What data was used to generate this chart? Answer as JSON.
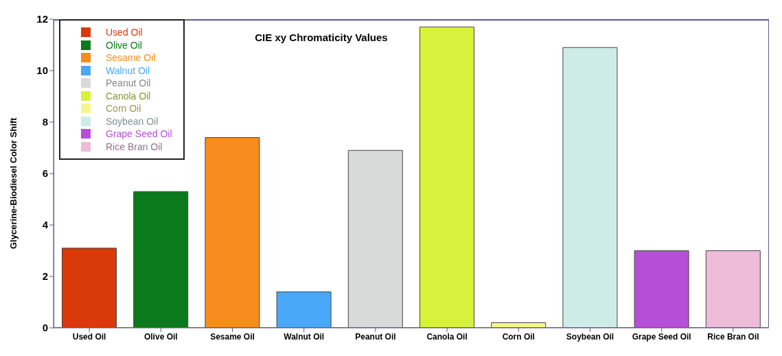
{
  "chart_data": {
    "type": "bar",
    "title": "CIE xy Chromaticity Values",
    "ylabel": "Glycerine-Biodiesel Color Shift",
    "categories": [
      "Used Oil",
      "Olive Oil",
      "Sesame Oil",
      "Walnut Oil",
      "Peanut Oil",
      "Canola Oil",
      "Corn Oil",
      "Soybean Oil",
      "Grape Seed Oil",
      "Rice Bran Oil"
    ],
    "stacked": true,
    "series": [
      {
        "name": "Used Oil",
        "color": "#d93a0a",
        "values": [
          3.1,
          null,
          null,
          null,
          null,
          null,
          null,
          null,
          null,
          null
        ]
      },
      {
        "name": "Olive Oil",
        "color": "#0a7a1a",
        "values": [
          null,
          5.3,
          null,
          null,
          null,
          null,
          null,
          null,
          null,
          null
        ]
      },
      {
        "name": "Sesame Oil",
        "color": "#f88c1e",
        "values": [
          null,
          null,
          7.4,
          null,
          null,
          null,
          null,
          null,
          null,
          null
        ]
      },
      {
        "name": "Walnut Oil",
        "color": "#4aa8f8",
        "values": [
          null,
          null,
          null,
          1.4,
          null,
          null,
          null,
          null,
          null,
          null
        ]
      },
      {
        "name": "Peanut Oil",
        "color": "#d8d9d9",
        "values": [
          null,
          null,
          null,
          null,
          6.9,
          null,
          null,
          null,
          null,
          null
        ]
      },
      {
        "name": "Canola Oil",
        "color": "#d6f23c",
        "values": [
          null,
          null,
          null,
          null,
          null,
          11.7,
          null,
          null,
          null,
          null
        ]
      },
      {
        "name": "Corn Oil",
        "color": "#f7f58e",
        "values": [
          null,
          null,
          null,
          null,
          null,
          null,
          0.2,
          null,
          null,
          null
        ]
      },
      {
        "name": "Soybean Oil",
        "color": "#cdece8",
        "values": [
          null,
          null,
          null,
          null,
          null,
          null,
          null,
          10.9,
          null,
          null
        ]
      },
      {
        "name": "Grape Seed Oil",
        "color": "#b64fd8",
        "values": [
          null,
          null,
          null,
          null,
          null,
          null,
          null,
          null,
          3.0,
          null
        ]
      },
      {
        "name": "Rice Bran Oil",
        "color": "#eebbd9",
        "values": [
          null,
          null,
          null,
          null,
          null,
          null,
          null,
          null,
          null,
          3.0
        ]
      }
    ],
    "ylim": [
      0,
      12
    ],
    "yticks": [
      0,
      2,
      4,
      6,
      8,
      10,
      12
    ],
    "grid": false,
    "legend": "top left"
  }
}
